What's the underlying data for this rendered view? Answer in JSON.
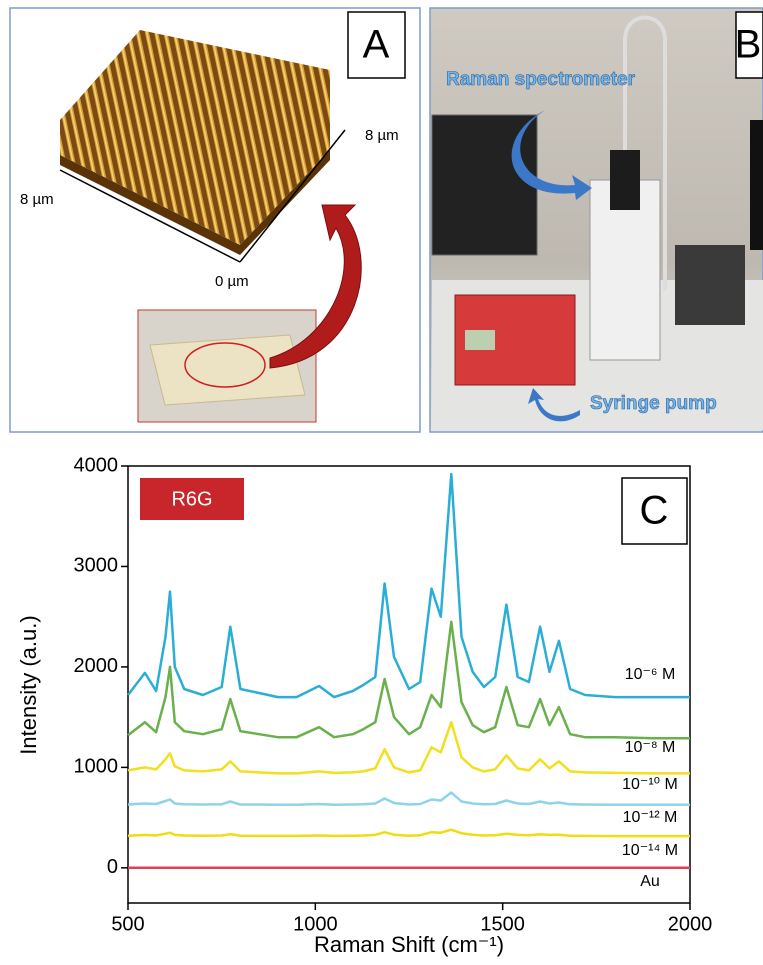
{
  "panels": {
    "a": {
      "letter": "A",
      "axis_right": "8  µm",
      "axis_left": "8  µm",
      "axis_origin": "0 µm"
    },
    "b": {
      "letter": "B",
      "label_top": "Raman spectrometer",
      "label_bottom": "Syringe pump"
    }
  },
  "chart_data": {
    "type": "line",
    "letter": "C",
    "badge": "R6G",
    "xlabel": "Raman Shift (cm⁻¹)",
    "ylabel": "Intensity (a.u.)",
    "xlim": [
      500,
      2000
    ],
    "ylim": [
      -350,
      4000
    ],
    "xticks": [
      500,
      1000,
      1500,
      2000
    ],
    "yticks": [
      0,
      1000,
      2000,
      3000,
      4000
    ],
    "x": [
      500,
      545,
      575,
      600,
      612,
      625,
      650,
      700,
      750,
      773,
      800,
      850,
      900,
      950,
      1010,
      1050,
      1100,
      1128,
      1160,
      1185,
      1210,
      1250,
      1280,
      1310,
      1335,
      1363,
      1390,
      1420,
      1450,
      1480,
      1510,
      1540,
      1570,
      1600,
      1625,
      1650,
      1680,
      1720,
      1800,
      1900,
      2000
    ],
    "series": [
      {
        "name": "10⁻⁶ M",
        "color": "#2aaed6",
        "values": [
          1720,
          1940,
          1760,
          2300,
          2750,
          2000,
          1780,
          1720,
          1800,
          2400,
          1780,
          1740,
          1700,
          1700,
          1810,
          1700,
          1760,
          1820,
          1900,
          2830,
          2100,
          1780,
          1850,
          2780,
          2500,
          3920,
          2300,
          1950,
          1800,
          1900,
          2620,
          1900,
          1850,
          2400,
          1950,
          2260,
          1780,
          1720,
          1700,
          1700,
          1700
        ]
      },
      {
        "name": "10⁻⁸ M",
        "color": "#6ab04c",
        "values": [
          1320,
          1450,
          1350,
          1700,
          2000,
          1450,
          1360,
          1330,
          1380,
          1680,
          1360,
          1330,
          1300,
          1300,
          1400,
          1300,
          1330,
          1380,
          1450,
          1880,
          1500,
          1330,
          1400,
          1720,
          1600,
          2450,
          1650,
          1420,
          1350,
          1400,
          1800,
          1420,
          1400,
          1680,
          1420,
          1600,
          1330,
          1300,
          1300,
          1290,
          1290
        ]
      },
      {
        "name": "10⁻¹⁰ M",
        "color": "#f2df1e",
        "values": [
          970,
          1000,
          980,
          1080,
          1140,
          1010,
          970,
          960,
          980,
          1060,
          960,
          950,
          940,
          940,
          960,
          945,
          950,
          960,
          990,
          1180,
          1000,
          950,
          970,
          1200,
          1150,
          1450,
          1100,
          1000,
          960,
          980,
          1120,
          990,
          970,
          1080,
          990,
          1060,
          960,
          950,
          945,
          940,
          940
        ]
      },
      {
        "name": "10⁻¹² M",
        "color": "#8dd4ea",
        "values": [
          630,
          640,
          635,
          665,
          680,
          640,
          632,
          630,
          632,
          660,
          630,
          630,
          628,
          628,
          635,
          628,
          630,
          632,
          640,
          690,
          645,
          630,
          635,
          680,
          670,
          750,
          660,
          640,
          632,
          635,
          670,
          640,
          635,
          660,
          640,
          650,
          632,
          630,
          628,
          628,
          628
        ]
      },
      {
        "name": "10⁻¹⁴ M",
        "color": "#eedd10",
        "values": [
          320,
          328,
          322,
          340,
          350,
          328,
          322,
          320,
          322,
          335,
          320,
          318,
          318,
          318,
          322,
          318,
          320,
          322,
          328,
          355,
          330,
          320,
          325,
          355,
          350,
          380,
          345,
          330,
          322,
          325,
          340,
          328,
          325,
          335,
          328,
          330,
          320,
          318,
          316,
          316,
          316
        ]
      },
      {
        "name": "Au",
        "color": "#e0405a",
        "values": [
          0,
          0,
          0,
          0,
          0,
          0,
          0,
          0,
          0,
          0,
          0,
          0,
          0,
          0,
          0,
          0,
          0,
          0,
          0,
          0,
          0,
          0,
          0,
          0,
          0,
          0,
          0,
          0,
          0,
          0,
          0,
          0,
          0,
          0,
          0,
          0,
          0,
          0,
          0,
          0,
          0
        ]
      }
    ]
  }
}
